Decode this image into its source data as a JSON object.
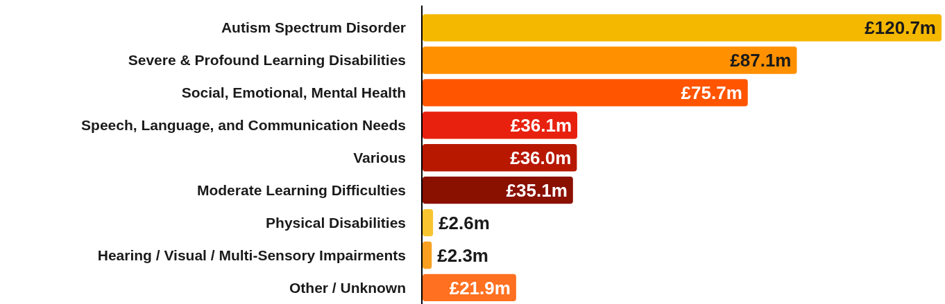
{
  "chart_data": {
    "type": "bar",
    "orientation": "horizontal",
    "categories": [
      "Autism Spectrum Disorder",
      "Severe & Profound Learning Disabilities",
      "Social, Emotional, Mental Health",
      "Speech, Language, and Communication Needs",
      "Various",
      "Moderate Learning Difficulties",
      "Physical Disabilities",
      "Hearing / Visual / Multi-Sensory Impairments",
      "Other / Unknown"
    ],
    "values": [
      120.7,
      87.1,
      75.7,
      36.1,
      36.0,
      35.1,
      2.6,
      2.3,
      21.9
    ],
    "colors": [
      "#f5b800",
      "#ff9000",
      "#ff5500",
      "#e8210f",
      "#b81800",
      "#8a1000",
      "#f7c530",
      "#f9a020",
      "#ff7020"
    ],
    "value_labels": [
      "£120.7m",
      "£87.1m",
      "£75.7m",
      "£36.1m",
      "£36.0m",
      "£35.1m",
      "£2.6m",
      "£2.3m",
      "£21.9m"
    ]
  }
}
